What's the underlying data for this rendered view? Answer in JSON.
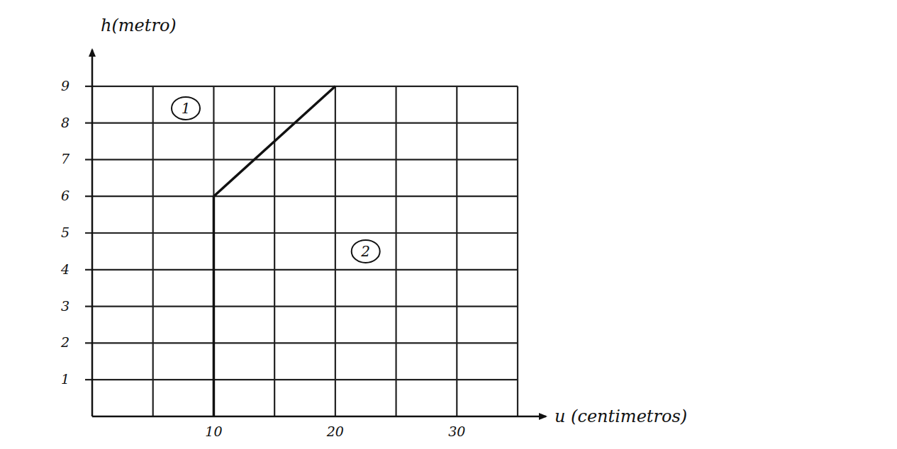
{
  "chart_data": {
    "type": "line",
    "x_label": "u (centimetros)",
    "y_label": "h(metro)",
    "x": [
      10,
      10,
      20
    ],
    "values": [
      0,
      6,
      9
    ],
    "color": "#111111",
    "xlim": [
      0,
      35
    ],
    "xticks": [
      10,
      20,
      30
    ],
    "ylim": [
      0,
      10
    ],
    "yticks": [
      1,
      2,
      3,
      4,
      5,
      6,
      7,
      8,
      9
    ],
    "grid": true,
    "annotations": [
      {
        "text": "1",
        "x": 7.7,
        "y": 8.4
      },
      {
        "text": "2",
        "x": 22.5,
        "y": 4.5
      }
    ]
  }
}
